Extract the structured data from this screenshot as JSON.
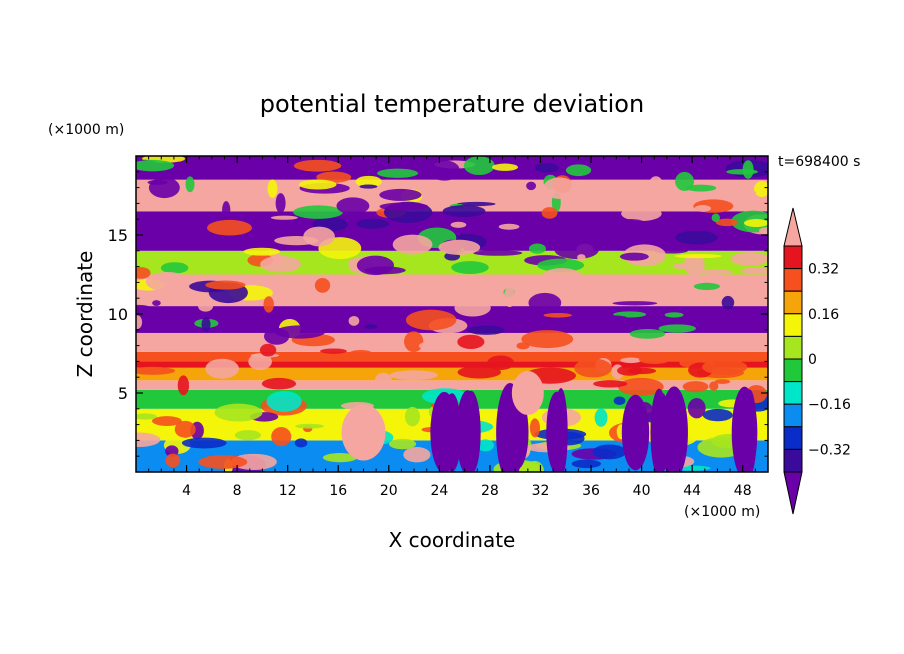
{
  "chart_data": {
    "type": "heatmap",
    "title": "potential temperature deviation",
    "xlabel": "X coordinate",
    "ylabel": "Z coordinate",
    "x_unit": "(×1000 m)",
    "y_unit": "(×1000 m)",
    "time_label": "t=698400 s",
    "xlim": [
      0,
      50
    ],
    "ylim": [
      0,
      20
    ],
    "x_ticks": [
      4,
      8,
      12,
      16,
      20,
      24,
      28,
      32,
      36,
      40,
      44,
      48
    ],
    "y_ticks": [
      5,
      10,
      15
    ],
    "colorbar": {
      "tick_labels": [
        "0.32",
        "0.16",
        "0",
        "−0.16",
        "−0.32"
      ],
      "tick_values": [
        0.32,
        0.16,
        0,
        -0.16,
        -0.32
      ],
      "levels": [
        -0.4,
        -0.32,
        -0.24,
        -0.16,
        -0.08,
        0,
        0.08,
        0.16,
        0.24,
        0.32,
        0.4
      ],
      "colors": [
        "#6a00a8",
        "#3a0a9a",
        "#0a2cc8",
        "#0a8cf0",
        "#00e6c8",
        "#22c83c",
        "#a6e61e",
        "#f5f50a",
        "#f5a50a",
        "#f5501e",
        "#e6141e",
        "#f5a6a0"
      ]
    }
  }
}
